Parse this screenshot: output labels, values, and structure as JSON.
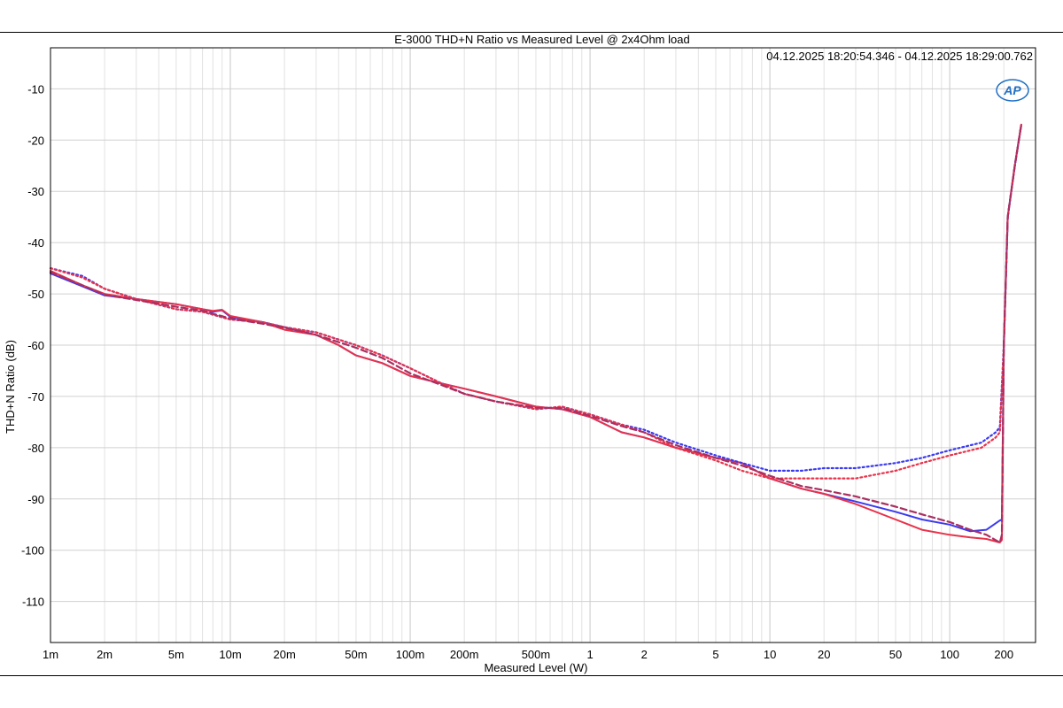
{
  "chart_data": {
    "type": "line",
    "title": "E-3000 THD+N Ratio vs Measured Level @ 2x4Ohm load",
    "timestamp": "04.12.2025 18:20:54.346 - 04.12.2025 18:29:00.762",
    "logo": "AP",
    "xlabel": "Measured Level (W)",
    "ylabel": "THD+N Ratio (dB)",
    "xscale": "log",
    "xlim": [
      0.001,
      300
    ],
    "ylim": [
      -118,
      -2
    ],
    "grid": true,
    "x_ticks": [
      {
        "value": 0.001,
        "label": "1m"
      },
      {
        "value": 0.002,
        "label": "2m"
      },
      {
        "value": 0.005,
        "label": "5m"
      },
      {
        "value": 0.01,
        "label": "10m"
      },
      {
        "value": 0.02,
        "label": "20m"
      },
      {
        "value": 0.05,
        "label": "50m"
      },
      {
        "value": 0.1,
        "label": "100m"
      },
      {
        "value": 0.2,
        "label": "200m"
      },
      {
        "value": 0.5,
        "label": "500m"
      },
      {
        "value": 1,
        "label": "1"
      },
      {
        "value": 2,
        "label": "2"
      },
      {
        "value": 5,
        "label": "5"
      },
      {
        "value": 10,
        "label": "10"
      },
      {
        "value": 20,
        "label": "20"
      },
      {
        "value": 50,
        "label": "50"
      },
      {
        "value": 100,
        "label": "100"
      },
      {
        "value": 200,
        "label": "200"
      }
    ],
    "y_ticks": [
      {
        "value": -10,
        "label": "-10"
      },
      {
        "value": -20,
        "label": "-20"
      },
      {
        "value": -30,
        "label": "-30"
      },
      {
        "value": -40,
        "label": "-40"
      },
      {
        "value": -50,
        "label": "-50"
      },
      {
        "value": -60,
        "label": "-60"
      },
      {
        "value": -70,
        "label": "-70"
      },
      {
        "value": -80,
        "label": "-80"
      },
      {
        "value": -90,
        "label": "-90"
      },
      {
        "value": -100,
        "label": "-100"
      },
      {
        "value": -110,
        "label": "-110"
      }
    ],
    "series": [
      {
        "color": "#3a3af0",
        "style": "solid",
        "points": [
          [
            0.001,
            -46
          ],
          [
            0.0015,
            -48.5
          ],
          [
            0.002,
            -50.3
          ],
          [
            0.003,
            -51
          ],
          [
            0.005,
            -52
          ],
          [
            0.007,
            -53
          ],
          [
            0.008,
            -53.5
          ],
          [
            0.009,
            -53.2
          ],
          [
            0.01,
            -54.5
          ],
          [
            0.015,
            -55.5
          ],
          [
            0.02,
            -56.5
          ],
          [
            0.03,
            -58
          ],
          [
            0.04,
            -60
          ],
          [
            0.05,
            -62
          ],
          [
            0.07,
            -63.5
          ],
          [
            0.1,
            -66
          ],
          [
            0.15,
            -67.5
          ],
          [
            0.2,
            -68.5
          ],
          [
            0.3,
            -70
          ],
          [
            0.5,
            -72
          ],
          [
            0.7,
            -72.5
          ],
          [
            1,
            -74
          ],
          [
            1.5,
            -77
          ],
          [
            2,
            -78
          ],
          [
            3,
            -80
          ],
          [
            5,
            -82
          ],
          [
            7,
            -83
          ],
          [
            10,
            -86
          ],
          [
            15,
            -88
          ],
          [
            20,
            -89
          ],
          [
            30,
            -90.5
          ],
          [
            50,
            -92.5
          ],
          [
            70,
            -94
          ],
          [
            100,
            -95
          ],
          [
            130,
            -96.3
          ],
          [
            160,
            -96
          ],
          [
            190,
            -94.2
          ],
          [
            195,
            -94
          ],
          [
            200,
            -60
          ],
          [
            210,
            -35
          ],
          [
            230,
            -25
          ],
          [
            250,
            -17
          ]
        ]
      },
      {
        "color": "#e8324a",
        "style": "solid",
        "points": [
          [
            0.001,
            -45.5
          ],
          [
            0.0015,
            -48.3
          ],
          [
            0.002,
            -50
          ],
          [
            0.003,
            -51
          ],
          [
            0.005,
            -52
          ],
          [
            0.007,
            -53
          ],
          [
            0.008,
            -53.3
          ],
          [
            0.009,
            -53.1
          ],
          [
            0.01,
            -54.3
          ],
          [
            0.015,
            -55.5
          ],
          [
            0.02,
            -57
          ],
          [
            0.03,
            -58
          ],
          [
            0.04,
            -60
          ],
          [
            0.05,
            -62
          ],
          [
            0.07,
            -63.5
          ],
          [
            0.1,
            -66
          ],
          [
            0.15,
            -67.5
          ],
          [
            0.2,
            -68.5
          ],
          [
            0.3,
            -70
          ],
          [
            0.5,
            -72
          ],
          [
            0.7,
            -72.5
          ],
          [
            1,
            -74
          ],
          [
            1.5,
            -77
          ],
          [
            2,
            -78
          ],
          [
            3,
            -80
          ],
          [
            5,
            -82
          ],
          [
            7,
            -83
          ],
          [
            10,
            -86
          ],
          [
            15,
            -88
          ],
          [
            20,
            -89
          ],
          [
            30,
            -91
          ],
          [
            50,
            -94
          ],
          [
            70,
            -96
          ],
          [
            100,
            -97
          ],
          [
            130,
            -97.5
          ],
          [
            160,
            -97.8
          ],
          [
            190,
            -98.5
          ],
          [
            195,
            -98
          ],
          [
            200,
            -60
          ],
          [
            210,
            -35
          ],
          [
            230,
            -25
          ],
          [
            250,
            -17
          ]
        ]
      },
      {
        "color": "#3a3af0",
        "style": "dotted",
        "points": [
          [
            0.001,
            -45
          ],
          [
            0.0015,
            -46.5
          ],
          [
            0.002,
            -49
          ],
          [
            0.003,
            -51
          ],
          [
            0.005,
            -53
          ],
          [
            0.007,
            -53.5
          ],
          [
            0.01,
            -55
          ],
          [
            0.015,
            -55.5
          ],
          [
            0.02,
            -56.5
          ],
          [
            0.03,
            -57.5
          ],
          [
            0.05,
            -60
          ],
          [
            0.07,
            -62
          ],
          [
            0.1,
            -64.5
          ],
          [
            0.15,
            -67.5
          ],
          [
            0.2,
            -69.5
          ],
          [
            0.3,
            -71
          ],
          [
            0.5,
            -72.5
          ],
          [
            0.7,
            -72
          ],
          [
            1,
            -73.5
          ],
          [
            1.5,
            -75.5
          ],
          [
            2,
            -76.5
          ],
          [
            3,
            -79
          ],
          [
            5,
            -81.5
          ],
          [
            7,
            -83
          ],
          [
            10,
            -84.5
          ],
          [
            15,
            -84.5
          ],
          [
            20,
            -84
          ],
          [
            30,
            -84
          ],
          [
            50,
            -83
          ],
          [
            70,
            -82
          ],
          [
            100,
            -80.5
          ],
          [
            150,
            -79
          ],
          [
            180,
            -77
          ],
          [
            190,
            -76
          ],
          [
            200,
            -60
          ],
          [
            210,
            -35
          ],
          [
            230,
            -25
          ],
          [
            250,
            -17
          ]
        ]
      },
      {
        "color": "#e8324a",
        "style": "dotted",
        "points": [
          [
            0.001,
            -45
          ],
          [
            0.0015,
            -46.8
          ],
          [
            0.002,
            -49
          ],
          [
            0.003,
            -51
          ],
          [
            0.005,
            -53
          ],
          [
            0.007,
            -53.5
          ],
          [
            0.01,
            -55
          ],
          [
            0.015,
            -55.5
          ],
          [
            0.02,
            -56.5
          ],
          [
            0.03,
            -57.5
          ],
          [
            0.05,
            -60
          ],
          [
            0.07,
            -62
          ],
          [
            0.1,
            -64.5
          ],
          [
            0.15,
            -67.5
          ],
          [
            0.2,
            -69.5
          ],
          [
            0.3,
            -71
          ],
          [
            0.5,
            -72.5
          ],
          [
            0.7,
            -72
          ],
          [
            1,
            -73.5
          ],
          [
            1.5,
            -75.5
          ],
          [
            2,
            -77
          ],
          [
            3,
            -80
          ],
          [
            5,
            -82.5
          ],
          [
            7,
            -84.5
          ],
          [
            10,
            -86
          ],
          [
            15,
            -86
          ],
          [
            20,
            -86
          ],
          [
            30,
            -86
          ],
          [
            50,
            -84.5
          ],
          [
            70,
            -83
          ],
          [
            100,
            -81.5
          ],
          [
            150,
            -80
          ],
          [
            180,
            -78
          ],
          [
            190,
            -77
          ],
          [
            200,
            -60
          ],
          [
            210,
            -35
          ],
          [
            230,
            -25
          ],
          [
            250,
            -17
          ]
        ]
      },
      {
        "color": "#a83060",
        "style": "dashed",
        "points": [
          [
            0.001,
            -45.8
          ],
          [
            0.0015,
            -48.3
          ],
          [
            0.002,
            -50.2
          ],
          [
            0.003,
            -51.2
          ],
          [
            0.005,
            -52.5
          ],
          [
            0.007,
            -53.3
          ],
          [
            0.01,
            -54.8
          ],
          [
            0.015,
            -55.8
          ],
          [
            0.02,
            -56.6
          ],
          [
            0.03,
            -58
          ],
          [
            0.05,
            -60.5
          ],
          [
            0.07,
            -62.5
          ],
          [
            0.1,
            -65.5
          ],
          [
            0.15,
            -67.8
          ],
          [
            0.2,
            -69.5
          ],
          [
            0.3,
            -71
          ],
          [
            0.5,
            -72.2
          ],
          [
            0.7,
            -72.3
          ],
          [
            1,
            -73.8
          ],
          [
            1.5,
            -75.8
          ],
          [
            2,
            -77
          ],
          [
            3,
            -79.5
          ],
          [
            5,
            -82
          ],
          [
            7,
            -83.5
          ],
          [
            10,
            -85.5
          ],
          [
            15,
            -87.5
          ],
          [
            20,
            -88.3
          ],
          [
            30,
            -89.5
          ],
          [
            50,
            -91.5
          ],
          [
            70,
            -93
          ],
          [
            100,
            -94.5
          ],
          [
            130,
            -96
          ],
          [
            160,
            -97
          ],
          [
            190,
            -98.5
          ],
          [
            195,
            -97
          ],
          [
            200,
            -60
          ],
          [
            210,
            -35
          ],
          [
            230,
            -25
          ],
          [
            250,
            -17
          ]
        ]
      }
    ]
  }
}
